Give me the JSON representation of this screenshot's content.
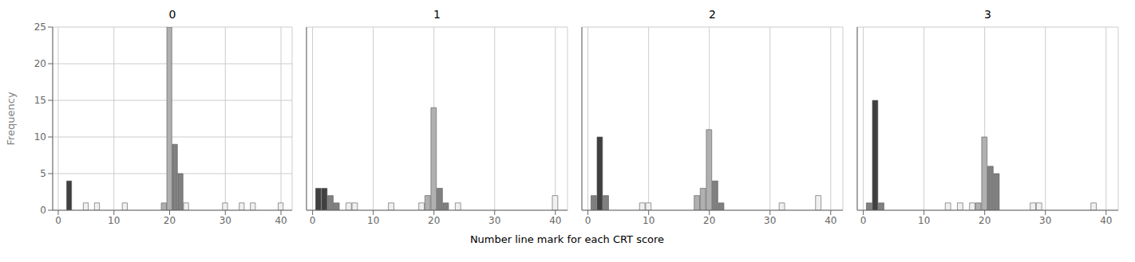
{
  "xlabel": "Number line mark for each CRT score",
  "chart_data": [
    {
      "type": "bar",
      "title": "0",
      "ylabel": "Frequency",
      "x": [
        2,
        5,
        7,
        12,
        19,
        20,
        21,
        22,
        23,
        30,
        33,
        35,
        40
      ],
      "values": [
        4,
        1,
        1,
        1,
        1,
        25,
        9,
        5,
        1,
        1,
        1,
        1,
        1
      ],
      "colors": [
        "#404040",
        "#f0f0f0",
        "#f0f0f0",
        "#f0f0f0",
        "#b0b0b0",
        "#b0b0b0",
        "#808080",
        "#808080",
        "#f0f0f0",
        "#f0f0f0",
        "#f0f0f0",
        "#f0f0f0",
        "#f0f0f0"
      ],
      "xlim": [
        -1,
        42
      ],
      "ylim": [
        0,
        25
      ],
      "xticks": [
        0,
        10,
        20,
        30,
        40
      ],
      "yticks": [
        0,
        5,
        10,
        15,
        20,
        25
      ],
      "grid": true
    },
    {
      "type": "bar",
      "title": "1",
      "x": [
        1,
        2,
        3,
        4,
        6,
        7,
        13,
        18,
        19,
        20,
        21,
        22,
        24,
        40
      ],
      "values": [
        3,
        3,
        2,
        1,
        1,
        1,
        1,
        1,
        2,
        14,
        3,
        1,
        1,
        2
      ],
      "colors": [
        "#404040",
        "#404040",
        "#808080",
        "#808080",
        "#f0f0f0",
        "#f0f0f0",
        "#f0f0f0",
        "#f0f0f0",
        "#b0b0b0",
        "#b0b0b0",
        "#808080",
        "#808080",
        "#f0f0f0",
        "#f0f0f0"
      ],
      "xlim": [
        -1,
        42
      ],
      "ylim": [
        0,
        25
      ],
      "xticks": [
        0,
        10,
        20,
        30,
        40
      ],
      "yticks": [
        0,
        5,
        10,
        15,
        20,
        25
      ],
      "grid": true,
      "tick_labels": "x"
    },
    {
      "type": "bar",
      "title": "2",
      "x": [
        1,
        2,
        3,
        9,
        10,
        18,
        19,
        20,
        21,
        22,
        32,
        38
      ],
      "values": [
        2,
        10,
        2,
        1,
        1,
        2,
        3,
        11,
        4,
        1,
        1,
        2
      ],
      "colors": [
        "#808080",
        "#404040",
        "#808080",
        "#f0f0f0",
        "#f0f0f0",
        "#b0b0b0",
        "#b0b0b0",
        "#b0b0b0",
        "#808080",
        "#808080",
        "#f0f0f0",
        "#f0f0f0"
      ],
      "xlim": [
        -1,
        42
      ],
      "ylim": [
        0,
        25
      ],
      "xticks": [
        0,
        10,
        20,
        30,
        40
      ],
      "yticks": [
        0,
        5,
        10,
        15,
        20,
        25
      ],
      "grid": true,
      "tick_labels": "x"
    },
    {
      "type": "bar",
      "title": "3",
      "x": [
        1,
        2,
        3,
        14,
        16,
        18,
        19,
        20,
        21,
        22,
        28,
        29,
        38
      ],
      "values": [
        1,
        15,
        1,
        1,
        1,
        1,
        1,
        10,
        6,
        5,
        1,
        1,
        1
      ],
      "colors": [
        "#808080",
        "#404040",
        "#808080",
        "#f0f0f0",
        "#f0f0f0",
        "#f0f0f0",
        "#b0b0b0",
        "#b0b0b0",
        "#808080",
        "#808080",
        "#f0f0f0",
        "#f0f0f0",
        "#f0f0f0"
      ],
      "xlim": [
        -1,
        42
      ],
      "ylim": [
        0,
        25
      ],
      "xticks": [
        0,
        10,
        20,
        30,
        40
      ],
      "yticks": [
        0,
        5,
        10,
        15,
        20,
        25
      ],
      "grid": true,
      "tick_labels": "x"
    }
  ]
}
